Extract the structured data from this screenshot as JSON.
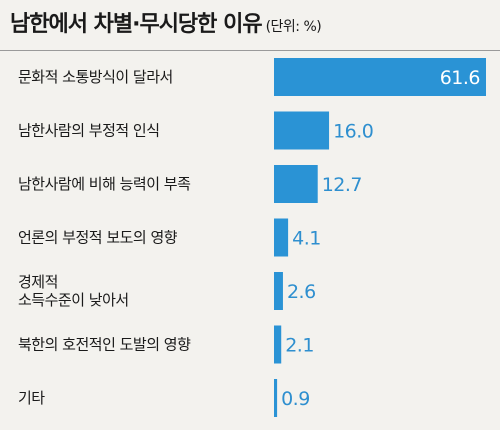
{
  "header": {
    "title": "남한에서 차별·무시당한 이유",
    "unit": "(단위: %)"
  },
  "colors": {
    "bar": "#2a93d5",
    "value_text": "#2e8fcf",
    "background": "#f3f2ee"
  },
  "chart_data": {
    "type": "bar",
    "orientation": "horizontal",
    "title": "남한에서 차별·무시당한 이유",
    "unit": "(단위: %)",
    "categories": [
      "문화적 소통방식이 달라서",
      "남한사람의 부정적 인식",
      "남한사람에 비해 능력이 부족",
      "언론의 부정적 보도의 영향",
      "경제적\n소득수준이 낮아서",
      "북한의 호전적인 도발의 영향",
      "기타"
    ],
    "values": [
      61.6,
      16.0,
      12.7,
      4.1,
      2.6,
      2.1,
      0.9
    ],
    "value_labels": [
      "61.6",
      "16.0",
      "12.7",
      "4.1",
      "2.6",
      "2.1",
      "0.9"
    ],
    "xlim": [
      0,
      61.6
    ],
    "grid": false,
    "legend": "none"
  }
}
